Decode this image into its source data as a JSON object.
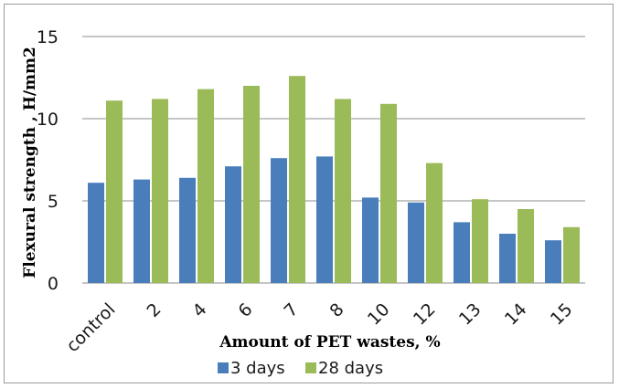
{
  "chart_data": {
    "type": "bar",
    "title": "",
    "xlabel": "Amount of PET wastes, %",
    "ylabel": "Flexural strength , H/mm2",
    "categories": [
      "control",
      "2",
      "4",
      "6",
      "7",
      "8",
      "10",
      "12",
      "13",
      "14",
      "15"
    ],
    "series": [
      {
        "name": "3 days",
        "color": "#4a7ebb",
        "values": [
          6.1,
          6.3,
          6.4,
          7.1,
          7.6,
          7.7,
          5.2,
          4.9,
          3.7,
          3.0,
          2.6
        ]
      },
      {
        "name": "28 days",
        "color": "#9bbb59",
        "values": [
          11.1,
          11.2,
          11.8,
          12.0,
          12.6,
          11.2,
          10.9,
          7.3,
          5.1,
          4.5,
          3.4
        ]
      }
    ],
    "ylim": [
      0,
      15
    ],
    "yticks": [
      0,
      5,
      10,
      15
    ],
    "grid": true,
    "legend_position": "bottom"
  }
}
